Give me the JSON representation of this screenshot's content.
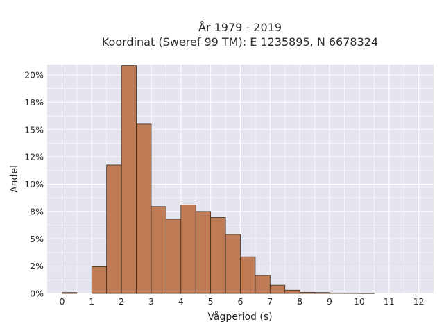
{
  "chart_data": {
    "type": "bar",
    "title_lines": [
      "År 1979 - 2019",
      "Koordinat (Sweref 99 TM): E 1235895, N 6678324"
    ],
    "xlabel": "Vågperiod (s)",
    "ylabel": "Andel",
    "xlim": [
      -0.5,
      12.5
    ],
    "ylim": [
      0,
      0.2
    ],
    "x_ticks": [
      0,
      1,
      2,
      3,
      4,
      5,
      6,
      7,
      8,
      9,
      10,
      11,
      12
    ],
    "x_tick_labels": [
      "0",
      "1",
      "2",
      "3",
      "4",
      "5",
      "6",
      "7",
      "8",
      "9",
      "10",
      "11",
      "12"
    ],
    "y_ticks": [
      0,
      0.025,
      0.05,
      0.075,
      0.1,
      0.125,
      0.15,
      0.175,
      0.2
    ],
    "y_tick_labels": [
      "0%",
      "2%",
      "5%",
      "8%",
      "10%",
      "12%",
      "15%",
      "18%",
      "20%"
    ],
    "grid": true,
    "bar_color": "#bf7b55",
    "bar_edge_color": "#3a2a20",
    "plot_background": "#e5e5ef",
    "bin_width": 0.5,
    "bins": [
      {
        "x0": 0.0,
        "x1": 0.5,
        "value": 0.0008
      },
      {
        "x0": 1.0,
        "x1": 1.5,
        "value": 0.0245
      },
      {
        "x0": 1.5,
        "x1": 2.0,
        "value": 0.1175
      },
      {
        "x0": 2.0,
        "x1": 2.5,
        "value": 0.2085
      },
      {
        "x0": 2.5,
        "x1": 3.0,
        "value": 0.155
      },
      {
        "x0": 3.0,
        "x1": 3.5,
        "value": 0.0795
      },
      {
        "x0": 3.5,
        "x1": 4.0,
        "value": 0.068
      },
      {
        "x0": 4.0,
        "x1": 4.5,
        "value": 0.081
      },
      {
        "x0": 4.5,
        "x1": 5.0,
        "value": 0.075
      },
      {
        "x0": 5.0,
        "x1": 5.5,
        "value": 0.0695
      },
      {
        "x0": 5.5,
        "x1": 6.0,
        "value": 0.054
      },
      {
        "x0": 6.0,
        "x1": 6.5,
        "value": 0.0335
      },
      {
        "x0": 6.5,
        "x1": 7.0,
        "value": 0.0165
      },
      {
        "x0": 7.0,
        "x1": 7.5,
        "value": 0.0075
      },
      {
        "x0": 7.5,
        "x1": 8.0,
        "value": 0.003
      },
      {
        "x0": 8.0,
        "x1": 8.5,
        "value": 0.001
      },
      {
        "x0": 8.5,
        "x1": 9.0,
        "value": 0.0008
      },
      {
        "x0": 9.0,
        "x1": 9.5,
        "value": 0.0004
      },
      {
        "x0": 9.5,
        "x1": 10.0,
        "value": 0.0003
      },
      {
        "x0": 10.0,
        "x1": 10.5,
        "value": 0.0002
      }
    ]
  }
}
